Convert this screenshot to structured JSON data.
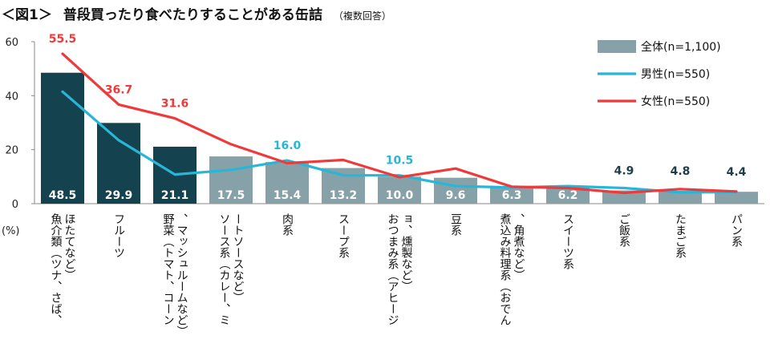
{
  "header": {
    "fig_label": "＜図1＞",
    "title": "普段買ったり食べたりすることがある缶詰",
    "note": "（複数回答）"
  },
  "colors": {
    "bar_dark": "#14424f",
    "bar_light": "#87a1a8",
    "male": "#28b6d8",
    "female": "#ee3a3a",
    "female_label": "#ee3a3a",
    "male_label": "#28b6d8",
    "total_label": "#1f3c47"
  },
  "chart_data": {
    "type": "bar",
    "title": "普段買ったり食べたりすることがある缶詰",
    "ylabel": "(%)",
    "ylim": [
      0,
      60
    ],
    "yticks": [
      0,
      20,
      40,
      60
    ],
    "grid": false,
    "legend_position": "top-right",
    "categories": [
      "魚介類（ツナ、さば、ほたてなど）",
      "フルーツ",
      "野菜（トマト、コーン、マッシュルームなど）",
      "ソース系（カレー、ミートソースなど）",
      "肉系",
      "スープ系",
      "おつまみ系（アヒージョ、燻製など）",
      "豆系",
      "煮込み料理系（おでん、角煮など）",
      "スイーツ系",
      "ご飯系",
      "たまご系",
      "パン系"
    ],
    "series": [
      {
        "name": "全体(n=1,100)",
        "kind": "bar",
        "values": [
          48.5,
          29.9,
          21.1,
          17.5,
          15.4,
          13.2,
          10.0,
          9.6,
          6.3,
          6.2,
          4.9,
          4.8,
          4.4
        ]
      },
      {
        "name": "男性(n=550)",
        "kind": "line",
        "values": [
          41.5,
          23.5,
          10.8,
          12.5,
          16.0,
          10.5,
          10.5,
          6.5,
          6.0,
          6.5,
          5.8,
          4.2,
          4.3
        ]
      },
      {
        "name": "女性(n=550)",
        "kind": "line",
        "values": [
          55.5,
          36.7,
          31.6,
          22.0,
          15.0,
          16.2,
          9.8,
          13.0,
          6.3,
          5.8,
          4.0,
          5.4,
          4.5
        ]
      }
    ],
    "data_labels": [
      {
        "series": 0,
        "category": 0,
        "text": "48.5",
        "pos": "inside"
      },
      {
        "series": 0,
        "category": 1,
        "text": "29.9",
        "pos": "inside"
      },
      {
        "series": 0,
        "category": 2,
        "text": "21.1",
        "pos": "inside"
      },
      {
        "series": 0,
        "category": 3,
        "text": "17.5",
        "pos": "inside"
      },
      {
        "series": 0,
        "category": 4,
        "text": "15.4",
        "pos": "inside"
      },
      {
        "series": 0,
        "category": 5,
        "text": "13.2",
        "pos": "inside"
      },
      {
        "series": 0,
        "category": 6,
        "text": "10.0",
        "pos": "inside"
      },
      {
        "series": 0,
        "category": 7,
        "text": "9.6",
        "pos": "inside"
      },
      {
        "series": 0,
        "category": 8,
        "text": "6.3",
        "pos": "inside"
      },
      {
        "series": 0,
        "category": 9,
        "text": "6.2",
        "pos": "inside"
      },
      {
        "series": 0,
        "category": 10,
        "text": "4.9",
        "pos": "above"
      },
      {
        "series": 0,
        "category": 11,
        "text": "4.8",
        "pos": "above"
      },
      {
        "series": 0,
        "category": 12,
        "text": "4.4",
        "pos": "above"
      },
      {
        "series": 2,
        "category": 0,
        "text": "55.5",
        "pos": "above"
      },
      {
        "series": 2,
        "category": 1,
        "text": "36.7",
        "pos": "above"
      },
      {
        "series": 2,
        "category": 2,
        "text": "31.6",
        "pos": "above"
      },
      {
        "series": 1,
        "category": 4,
        "text": "16.0",
        "pos": "above"
      },
      {
        "series": 1,
        "category": 6,
        "text": "10.5",
        "pos": "above"
      }
    ]
  }
}
